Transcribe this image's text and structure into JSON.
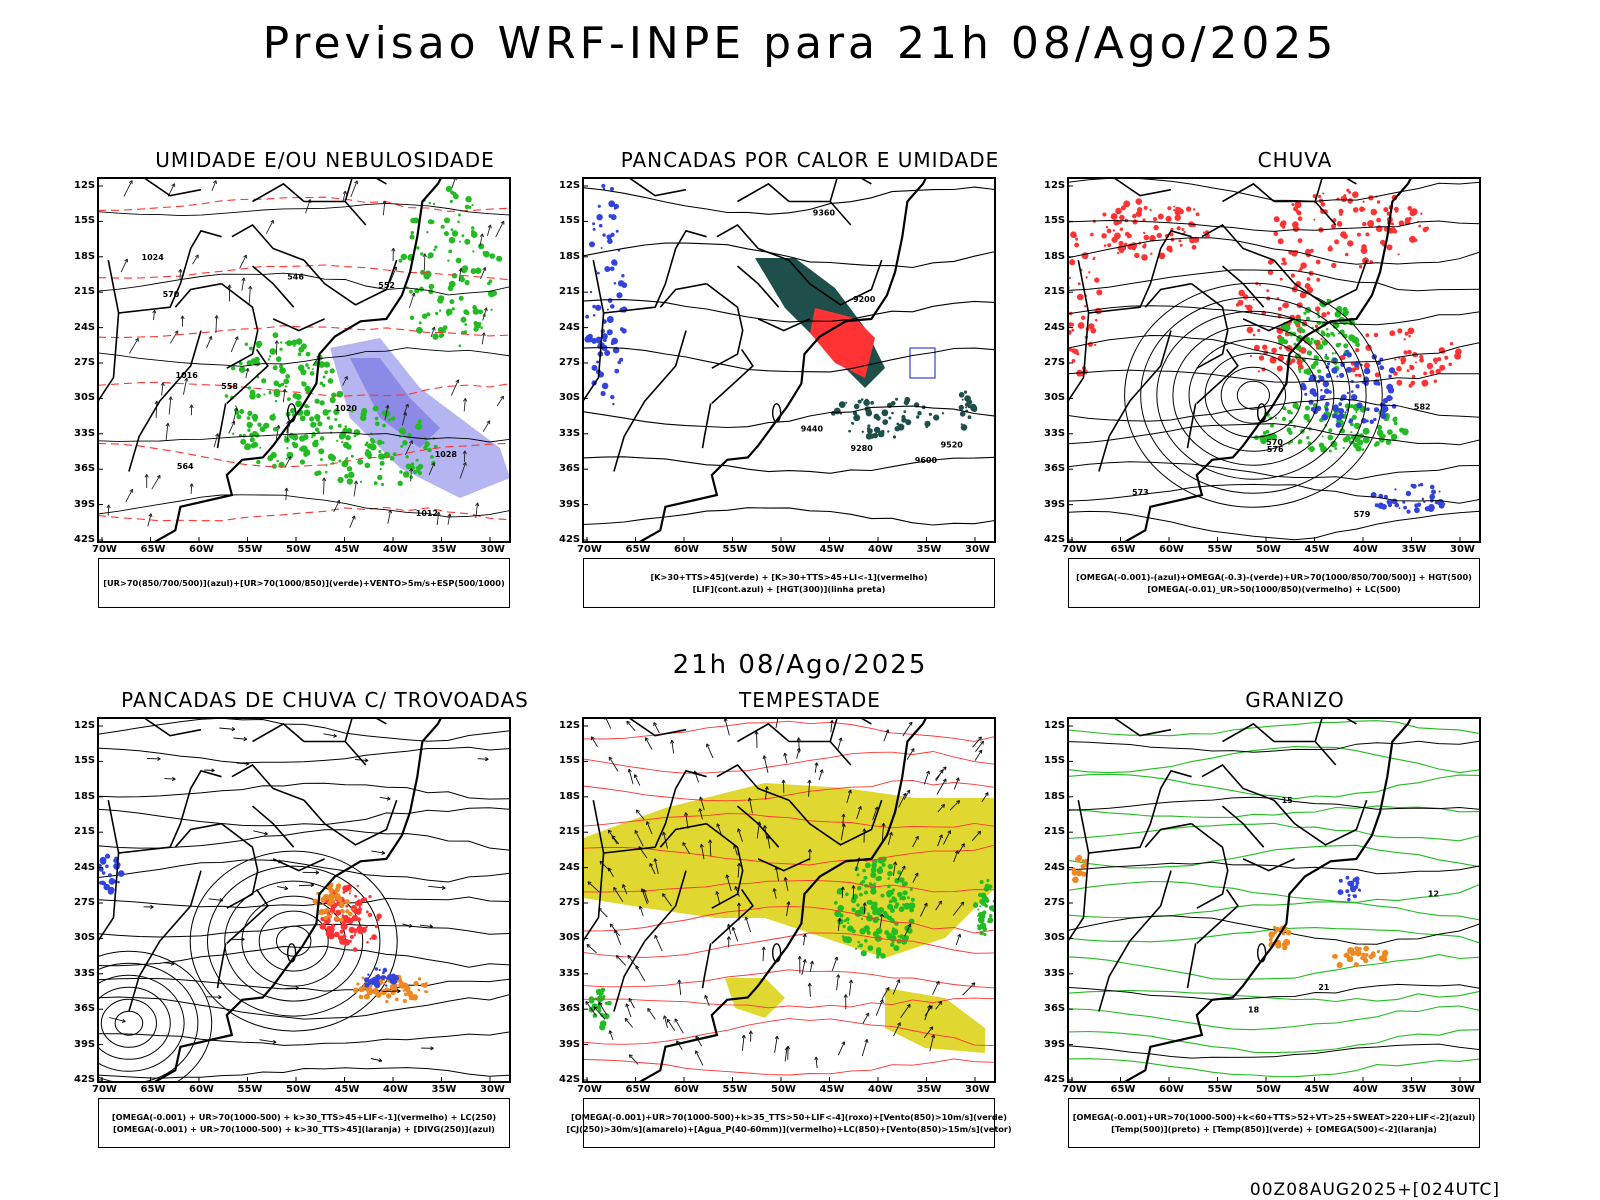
{
  "header": {
    "title": "Previsao WRF-INPE  para 21h 08/Ago/2025",
    "mid_date": "21h 08/Ago/2025",
    "footer": "00Z08AUG2025+[024UTC]"
  },
  "axes": {
    "lat_labels": [
      "12S",
      "15S",
      "18S",
      "21S",
      "24S",
      "27S",
      "30S",
      "33S",
      "36S",
      "39S",
      "42S"
    ],
    "lon_labels": [
      "70W",
      "65W",
      "60W",
      "55W",
      "50W",
      "45W",
      "40W",
      "35W",
      "30W"
    ]
  },
  "colors": {
    "blue": "#3344dd",
    "green": "#22bb22",
    "red": "#ff3333",
    "orange": "#ee8822",
    "yellow": "#e0d830",
    "darkteal": "#1f4f4a",
    "lavender": "#a8a8f0"
  },
  "panels": [
    {
      "id": "umidade",
      "title": "UMIDADE E/OU NEBULOSIDADE",
      "legend": [
        "[UR>70(850/700/500)](azul)+[UR>70(1000/850)](verde)+VENTO>5m/s+ESP(500/1000)"
      ],
      "contour_labels": [
        "1012",
        "1016",
        "1020",
        "1024",
        "1028",
        "570",
        "564",
        "558",
        "552",
        "546"
      ]
    },
    {
      "id": "pancadas-calor",
      "title": "PANCADAS POR CALOR E UMIDADE",
      "legend": [
        "[K>30+TTS>45](verde) + [K>30+TTS>45+LI<-1](vermelho)",
        "[LIF](cont.azul) + [HGT(300)](linha preta)"
      ],
      "contour_labels": [
        "9600",
        "9520",
        "9440",
        "9360",
        "9280",
        "9200"
      ]
    },
    {
      "id": "chuva",
      "title": "CHUVA",
      "legend": [
        "[OMEGA(-0.001)-(azul)+OMEGA(-0.3)-(verde)+UR>70(1000/850/700/500)] + HGT(500)",
        "[OMEGA(-0.01)_UR>50(1000/850)(vermelho) + LC(500)"
      ],
      "contour_labels": [
        "582",
        "579",
        "576",
        "573",
        "570"
      ]
    },
    {
      "id": "pancadas-trovoadas",
      "title": "PANCADAS DE CHUVA C/ TROVOADAS",
      "legend": [
        "[OMEGA(-0.001) + UR>70(1000-500) + k>30_TTS>45+LIF<-1](vermelho) + LC(250)",
        "[OMEGA(-0.001) + UR>70(1000-500) + k>30_TTS>45](laranja) + [DIVG(250)](azul)"
      ],
      "contour_labels": []
    },
    {
      "id": "tempestade",
      "title": "TEMPESTADE",
      "legend": [
        "[OMEGA(-0.001)+UR>70(1000-500)+k>35_TTS>50+LIF<-4](roxo)+[Vento(850)>10m/s](verde)",
        "[CJ(250)>30m/s](amarelo)+[Agua_P(40-60mm)](vermelho)+LC(850)+[Vento(850)>15m/s](vetor)"
      ],
      "contour_labels": []
    },
    {
      "id": "granizo",
      "title": "GRANIZO",
      "legend": [
        "[OMEGA(-0.001)+UR>70(1000-500)+k<60+TTS>52+VT>25+SWEAT>220+LIF<-2](azul)",
        "[Temp(500)](preto) + [Temp(850)](verde) + [OMEGA(500)<-2](laranja)"
      ],
      "contour_labels": [
        "12",
        "15",
        "18",
        "21"
      ]
    }
  ]
}
